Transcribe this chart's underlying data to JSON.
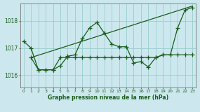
{
  "title": "Graphe pression niveau de la mer (hPa)",
  "background_color": "#cce8ee",
  "plot_bg_color": "#cce8ee",
  "line_color": "#1a5c1a",
  "grid_color": "#99cccc",
  "yticks": [
    1016,
    1017,
    1018
  ],
  "ylim": [
    1015.55,
    1018.65
  ],
  "xlim": [
    -0.5,
    23.5
  ],
  "series1_x": [
    0,
    1,
    2,
    3,
    4,
    5,
    6,
    7,
    8,
    9,
    10,
    11,
    12,
    13,
    14,
    15,
    16,
    17,
    18,
    19,
    20,
    21,
    22,
    23
  ],
  "series1_y": [
    1017.25,
    1017.0,
    1016.2,
    1016.2,
    1016.2,
    1016.35,
    1016.7,
    1016.75,
    1017.35,
    1017.75,
    1017.95,
    1017.55,
    1017.15,
    1017.05,
    1017.05,
    1016.45,
    1016.5,
    1016.3,
    1016.65,
    1016.75,
    1016.75,
    1017.75,
    1018.4,
    1018.5
  ],
  "series2_x": [
    1,
    2,
    3,
    4,
    5,
    6,
    7,
    8,
    9,
    10,
    11,
    12,
    13,
    14,
    15,
    16,
    17,
    18,
    19,
    20,
    21,
    22,
    23
  ],
  "series2_y": [
    1016.65,
    1016.2,
    1016.2,
    1016.2,
    1016.65,
    1016.65,
    1016.65,
    1016.65,
    1016.65,
    1016.65,
    1016.65,
    1016.65,
    1016.65,
    1016.65,
    1016.65,
    1016.65,
    1016.65,
    1016.65,
    1016.75,
    1016.75,
    1016.75,
    1016.75,
    1016.75
  ],
  "series3_x": [
    1,
    23
  ],
  "series3_y": [
    1016.65,
    1018.55
  ]
}
